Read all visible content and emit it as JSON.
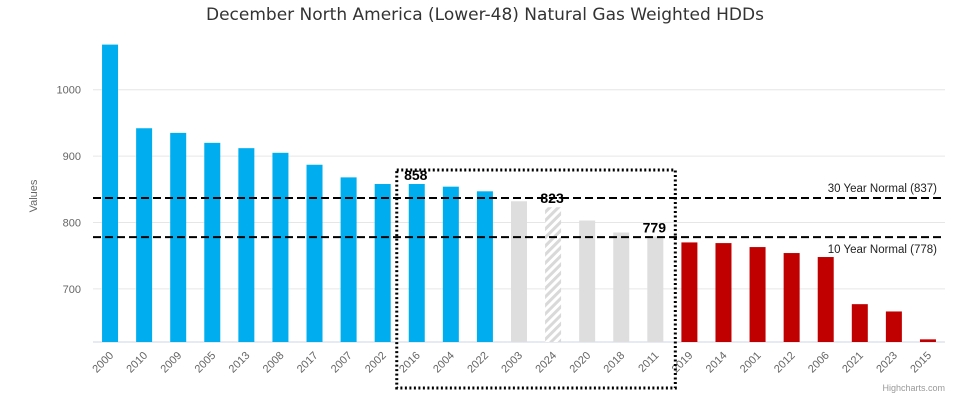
{
  "chart_data": {
    "type": "bar",
    "title": "December North America (Lower-48) Natural Gas Weighted HDDs",
    "xlabel": "",
    "ylabel": "Values",
    "ylim": [
      620,
      1090
    ],
    "yticks": [
      700,
      800,
      900,
      1000
    ],
    "grid": true,
    "categories": [
      "2000",
      "2010",
      "2009",
      "2005",
      "2013",
      "2008",
      "2017",
      "2007",
      "2002",
      "2016",
      "2004",
      "2022",
      "2003",
      "2024",
      "2020",
      "2018",
      "2011",
      "2019",
      "2014",
      "2001",
      "2012",
      "2006",
      "2021",
      "2023",
      "2015"
    ],
    "values": [
      1068,
      942,
      935,
      920,
      912,
      905,
      887,
      868,
      858,
      858,
      854,
      847,
      832,
      823,
      803,
      785,
      779,
      770,
      769,
      763,
      754,
      748,
      677,
      666,
      624
    ],
    "bar_groups": [
      "above",
      "above",
      "above",
      "above",
      "above",
      "above",
      "above",
      "above",
      "above",
      "above",
      "above",
      "above",
      "near",
      "current",
      "near",
      "near",
      "near",
      "below",
      "below",
      "below",
      "below",
      "below",
      "below",
      "below",
      "below"
    ],
    "group_colors": {
      "above": "#00aeef",
      "near": "#dedede",
      "current": "#dedede",
      "below": "#c00000"
    },
    "current_pattern": "hatched",
    "reference_lines": [
      {
        "label": "30 Year Normal (837)",
        "value": 837
      },
      {
        "label": "10 Year Normal (778)",
        "value": 778
      }
    ],
    "callouts": [
      {
        "category": "2016",
        "text": "858"
      },
      {
        "category": "2024",
        "text": "823"
      },
      {
        "category": "2011",
        "text": "779"
      }
    ],
    "highlight_box": {
      "from": "2016",
      "to": "2011",
      "style": "dotted"
    },
    "credits": "Highcharts.com"
  }
}
